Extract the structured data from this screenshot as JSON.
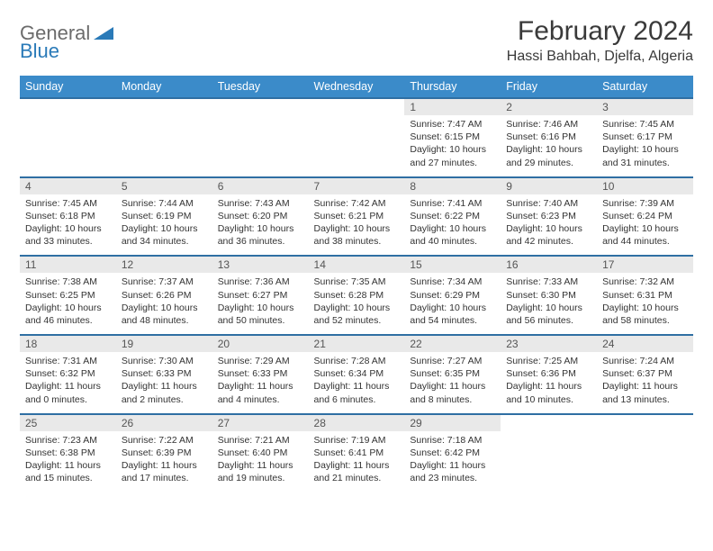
{
  "logo": {
    "part1": "General",
    "part2": "Blue"
  },
  "title": "February 2024",
  "location": "Hassi Bahbah, Djelfa, Algeria",
  "colors": {
    "header_bg": "#3b8bc9",
    "header_text": "#ffffff",
    "row_divider": "#2f6fa3",
    "daynum_bg": "#e9e9e9",
    "logo_gray": "#6b6b6b",
    "logo_blue": "#2a7ab8",
    "body_text": "#333333"
  },
  "typography": {
    "title_fontsize": 30,
    "location_fontsize": 16,
    "dayhead_fontsize": 12.5,
    "daynum_fontsize": 12,
    "cell_fontsize": 10.5
  },
  "day_headers": [
    "Sunday",
    "Monday",
    "Tuesday",
    "Wednesday",
    "Thursday",
    "Friday",
    "Saturday"
  ],
  "weeks": [
    [
      null,
      null,
      null,
      null,
      {
        "n": "1",
        "sr": "Sunrise: 7:47 AM",
        "ss": "Sunset: 6:15 PM",
        "dl": "Daylight: 10 hours and 27 minutes."
      },
      {
        "n": "2",
        "sr": "Sunrise: 7:46 AM",
        "ss": "Sunset: 6:16 PM",
        "dl": "Daylight: 10 hours and 29 minutes."
      },
      {
        "n": "3",
        "sr": "Sunrise: 7:45 AM",
        "ss": "Sunset: 6:17 PM",
        "dl": "Daylight: 10 hours and 31 minutes."
      }
    ],
    [
      {
        "n": "4",
        "sr": "Sunrise: 7:45 AM",
        "ss": "Sunset: 6:18 PM",
        "dl": "Daylight: 10 hours and 33 minutes."
      },
      {
        "n": "5",
        "sr": "Sunrise: 7:44 AM",
        "ss": "Sunset: 6:19 PM",
        "dl": "Daylight: 10 hours and 34 minutes."
      },
      {
        "n": "6",
        "sr": "Sunrise: 7:43 AM",
        "ss": "Sunset: 6:20 PM",
        "dl": "Daylight: 10 hours and 36 minutes."
      },
      {
        "n": "7",
        "sr": "Sunrise: 7:42 AM",
        "ss": "Sunset: 6:21 PM",
        "dl": "Daylight: 10 hours and 38 minutes."
      },
      {
        "n": "8",
        "sr": "Sunrise: 7:41 AM",
        "ss": "Sunset: 6:22 PM",
        "dl": "Daylight: 10 hours and 40 minutes."
      },
      {
        "n": "9",
        "sr": "Sunrise: 7:40 AM",
        "ss": "Sunset: 6:23 PM",
        "dl": "Daylight: 10 hours and 42 minutes."
      },
      {
        "n": "10",
        "sr": "Sunrise: 7:39 AM",
        "ss": "Sunset: 6:24 PM",
        "dl": "Daylight: 10 hours and 44 minutes."
      }
    ],
    [
      {
        "n": "11",
        "sr": "Sunrise: 7:38 AM",
        "ss": "Sunset: 6:25 PM",
        "dl": "Daylight: 10 hours and 46 minutes."
      },
      {
        "n": "12",
        "sr": "Sunrise: 7:37 AM",
        "ss": "Sunset: 6:26 PM",
        "dl": "Daylight: 10 hours and 48 minutes."
      },
      {
        "n": "13",
        "sr": "Sunrise: 7:36 AM",
        "ss": "Sunset: 6:27 PM",
        "dl": "Daylight: 10 hours and 50 minutes."
      },
      {
        "n": "14",
        "sr": "Sunrise: 7:35 AM",
        "ss": "Sunset: 6:28 PM",
        "dl": "Daylight: 10 hours and 52 minutes."
      },
      {
        "n": "15",
        "sr": "Sunrise: 7:34 AM",
        "ss": "Sunset: 6:29 PM",
        "dl": "Daylight: 10 hours and 54 minutes."
      },
      {
        "n": "16",
        "sr": "Sunrise: 7:33 AM",
        "ss": "Sunset: 6:30 PM",
        "dl": "Daylight: 10 hours and 56 minutes."
      },
      {
        "n": "17",
        "sr": "Sunrise: 7:32 AM",
        "ss": "Sunset: 6:31 PM",
        "dl": "Daylight: 10 hours and 58 minutes."
      }
    ],
    [
      {
        "n": "18",
        "sr": "Sunrise: 7:31 AM",
        "ss": "Sunset: 6:32 PM",
        "dl": "Daylight: 11 hours and 0 minutes."
      },
      {
        "n": "19",
        "sr": "Sunrise: 7:30 AM",
        "ss": "Sunset: 6:33 PM",
        "dl": "Daylight: 11 hours and 2 minutes."
      },
      {
        "n": "20",
        "sr": "Sunrise: 7:29 AM",
        "ss": "Sunset: 6:33 PM",
        "dl": "Daylight: 11 hours and 4 minutes."
      },
      {
        "n": "21",
        "sr": "Sunrise: 7:28 AM",
        "ss": "Sunset: 6:34 PM",
        "dl": "Daylight: 11 hours and 6 minutes."
      },
      {
        "n": "22",
        "sr": "Sunrise: 7:27 AM",
        "ss": "Sunset: 6:35 PM",
        "dl": "Daylight: 11 hours and 8 minutes."
      },
      {
        "n": "23",
        "sr": "Sunrise: 7:25 AM",
        "ss": "Sunset: 6:36 PM",
        "dl": "Daylight: 11 hours and 10 minutes."
      },
      {
        "n": "24",
        "sr": "Sunrise: 7:24 AM",
        "ss": "Sunset: 6:37 PM",
        "dl": "Daylight: 11 hours and 13 minutes."
      }
    ],
    [
      {
        "n": "25",
        "sr": "Sunrise: 7:23 AM",
        "ss": "Sunset: 6:38 PM",
        "dl": "Daylight: 11 hours and 15 minutes."
      },
      {
        "n": "26",
        "sr": "Sunrise: 7:22 AM",
        "ss": "Sunset: 6:39 PM",
        "dl": "Daylight: 11 hours and 17 minutes."
      },
      {
        "n": "27",
        "sr": "Sunrise: 7:21 AM",
        "ss": "Sunset: 6:40 PM",
        "dl": "Daylight: 11 hours and 19 minutes."
      },
      {
        "n": "28",
        "sr": "Sunrise: 7:19 AM",
        "ss": "Sunset: 6:41 PM",
        "dl": "Daylight: 11 hours and 21 minutes."
      },
      {
        "n": "29",
        "sr": "Sunrise: 7:18 AM",
        "ss": "Sunset: 6:42 PM",
        "dl": "Daylight: 11 hours and 23 minutes."
      },
      null,
      null
    ]
  ]
}
